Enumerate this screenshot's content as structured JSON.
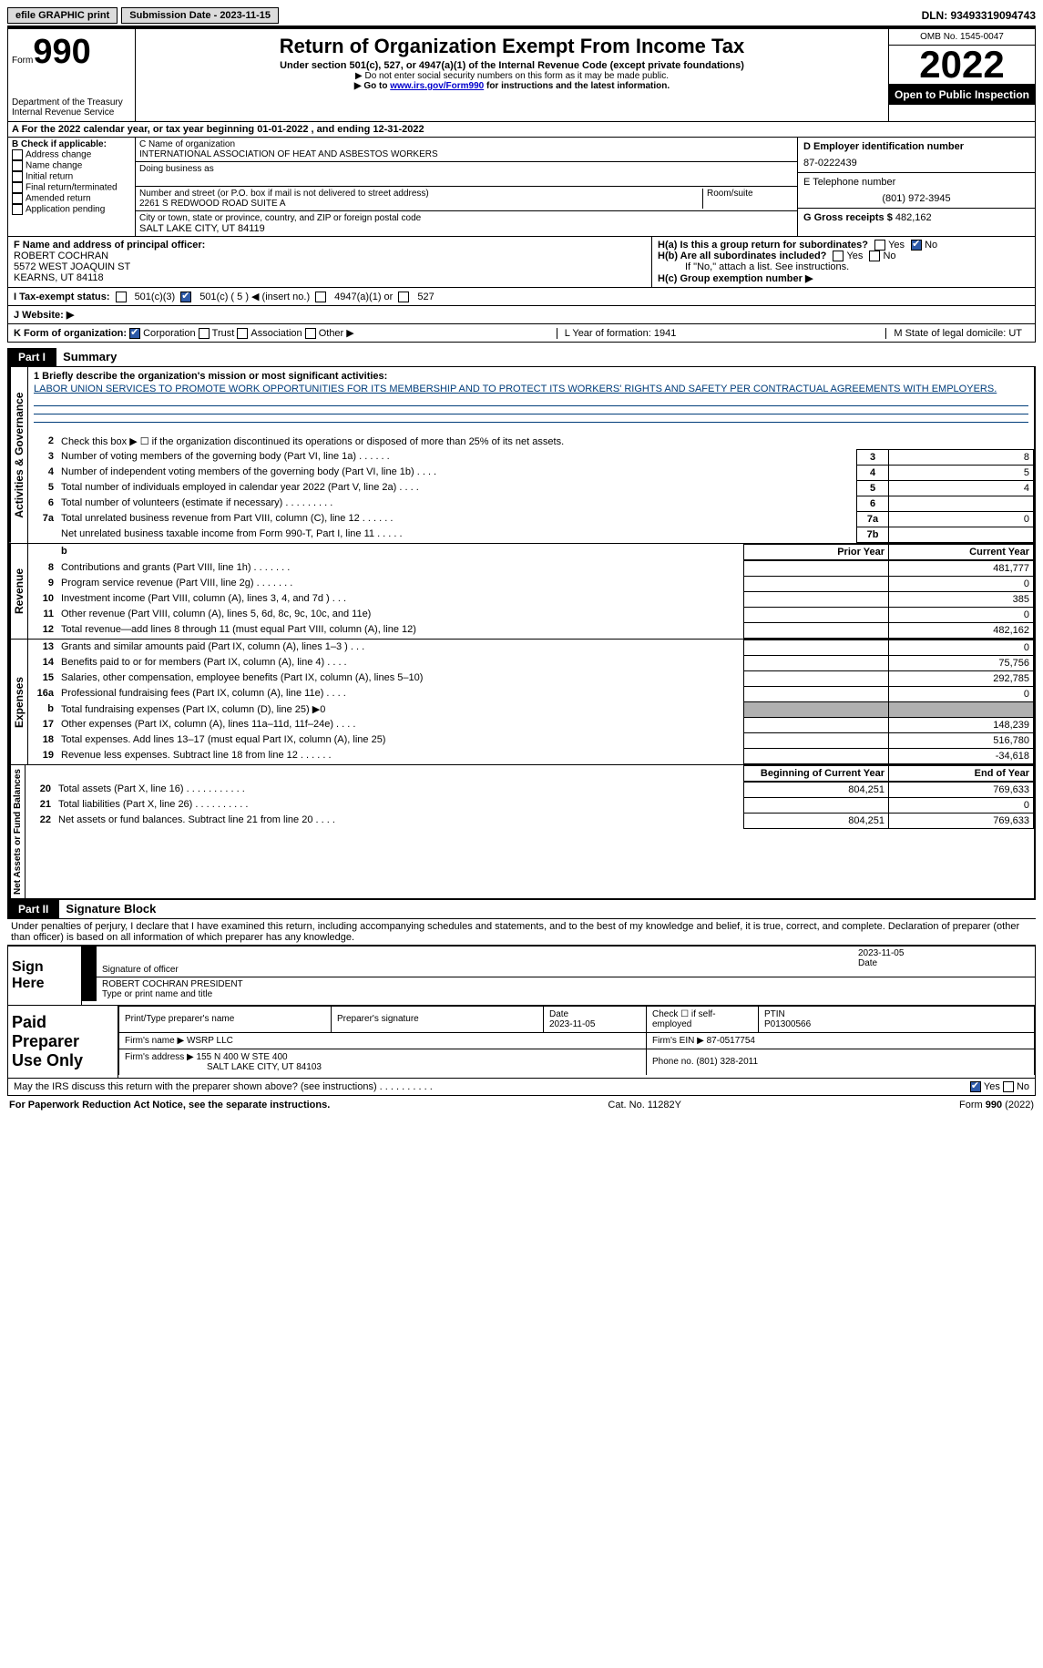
{
  "topbar": {
    "btn1": "efile GRAPHIC print",
    "sub_label": "Submission Date - 2023-11-15",
    "dln": "DLN: 93493319094743"
  },
  "header": {
    "form_word": "Form",
    "form_num": "990",
    "dept": "Department of the Treasury Internal Revenue Service",
    "title": "Return of Organization Exempt From Income Tax",
    "subtitle": "Under section 501(c), 527, or 4947(a)(1) of the Internal Revenue Code (except private foundations)",
    "note1": "▶ Do not enter social security numbers on this form as it may be made public.",
    "note2_pre": "▶ Go to ",
    "note2_link": "www.irs.gov/Form990",
    "note2_post": " for instructions and the latest information.",
    "omb": "OMB No. 1545-0047",
    "year": "2022",
    "open": "Open to Public Inspection"
  },
  "rowA": "A For the 2022 calendar year, or tax year beginning 01-01-2022    , and ending 12-31-2022",
  "colB": {
    "title": "B Check if applicable:",
    "opts": [
      "Address change",
      "Name change",
      "Initial return",
      "Final return/terminated",
      "Amended return",
      "Application pending"
    ]
  },
  "colC": {
    "name_label": "C Name of organization",
    "name": "INTERNATIONAL ASSOCIATION OF HEAT AND ASBESTOS WORKERS",
    "dba_label": "Doing business as",
    "addr_label": "Number and street (or P.O. box if mail is not delivered to street address)",
    "addr": "2261 S REDWOOD ROAD SUITE A",
    "room_label": "Room/suite",
    "city_label": "City or town, state or province, country, and ZIP or foreign postal code",
    "city": "SALT LAKE CITY, UT  84119"
  },
  "colD": {
    "ein_label": "D Employer identification number",
    "ein": "87-0222439",
    "tel_label": "E Telephone number",
    "tel": "(801) 972-3945",
    "gross_label": "G Gross receipts $",
    "gross": "482,162"
  },
  "sectionF": {
    "f_label": "F Name and address of principal officer:",
    "f_name": "ROBERT COCHRAN",
    "f_addr1": "5572 WEST JOAQUIN ST",
    "f_addr2": "KEARNS, UT  84118",
    "ha": "H(a)  Is this a group return for subordinates?",
    "hb": "H(b)  Are all subordinates included?",
    "hb_note": "If \"No,\" attach a list. See instructions.",
    "hc": "H(c)  Group exemption number ▶",
    "yes": "Yes",
    "no": "No"
  },
  "rowI": {
    "label": "I    Tax-exempt status:",
    "opt1": "501(c)(3)",
    "opt2": "501(c) ( 5 ) ◀ (insert no.)",
    "opt3": "4947(a)(1) or",
    "opt4": "527"
  },
  "rowJ": "J    Website: ▶",
  "rowK": {
    "label": "K Form of organization:",
    "opts": [
      "Corporation",
      "Trust",
      "Association",
      "Other ▶"
    ],
    "l": "L Year of formation: 1941",
    "m": "M State of legal domicile: UT"
  },
  "part1": {
    "header": "Part I",
    "title": "Summary",
    "side1": "Activities & Governance",
    "side2": "Revenue",
    "side3": "Expenses",
    "side4": "Net Assets or Fund Balances",
    "line1_label": "1   Briefly describe the organization's mission or most significant activities:",
    "mission": "LABOR UNION SERVICES TO PROMOTE WORK OPPORTUNITIES FOR ITS MEMBERSHIP AND TO PROTECT ITS WORKERS' RIGHTS AND SAFETY PER CONTRACTUAL AGREEMENTS WITH EMPLOYERS.",
    "line2": "Check this box ▶ ☐ if the organization discontinued its operations or disposed of more than 25% of its net assets.",
    "rows_a": [
      {
        "n": "3",
        "d": "Number of voting members of the governing body (Part VI, line 1a)   .    .    .    .    .    .",
        "b": "3",
        "v": "8"
      },
      {
        "n": "4",
        "d": "Number of independent voting members of the governing body (Part VI, line 1b)   .    .    .    .",
        "b": "4",
        "v": "5"
      },
      {
        "n": "5",
        "d": "Total number of individuals employed in calendar year 2022 (Part V, line 2a)   .    .    .    .",
        "b": "5",
        "v": "4"
      },
      {
        "n": "6",
        "d": "Total number of volunteers (estimate if necessary)    .    .    .    .    .    .    .    .    .",
        "b": "6",
        "v": ""
      },
      {
        "n": "7a",
        "d": "Total unrelated business revenue from Part VIII, column (C), line 12   .    .    .    .    .    .",
        "b": "7a",
        "v": "0"
      },
      {
        "n": "",
        "d": "Net unrelated business taxable income from Form 990-T, Part I, line 11   .    .    .    .    .",
        "b": "7b",
        "v": ""
      }
    ],
    "header_prior": "Prior Year",
    "header_current": "Current Year",
    "rows_b": [
      {
        "n": "8",
        "d": "Contributions and grants (Part VIII, line 1h)   .    .    .    .    .    .    .",
        "p": "",
        "c": "481,777"
      },
      {
        "n": "9",
        "d": "Program service revenue (Part VIII, line 2g)   .    .    .    .    .    .    .",
        "p": "",
        "c": "0"
      },
      {
        "n": "10",
        "d": "Investment income (Part VIII, column (A), lines 3, 4, and 7d )   .    .    .",
        "p": "",
        "c": "385"
      },
      {
        "n": "11",
        "d": "Other revenue (Part VIII, column (A), lines 5, 6d, 8c, 9c, 10c, and 11e)",
        "p": "",
        "c": "0"
      },
      {
        "n": "12",
        "d": "Total revenue—add lines 8 through 11 (must equal Part VIII, column (A), line 12)",
        "p": "",
        "c": "482,162"
      }
    ],
    "rows_c": [
      {
        "n": "13",
        "d": "Grants and similar amounts paid (Part IX, column (A), lines 1–3 )   .    .    .",
        "p": "",
        "c": "0"
      },
      {
        "n": "14",
        "d": "Benefits paid to or for members (Part IX, column (A), line 4)   .    .    .    .",
        "p": "",
        "c": "75,756"
      },
      {
        "n": "15",
        "d": "Salaries, other compensation, employee benefits (Part IX, column (A), lines 5–10)",
        "p": "",
        "c": "292,785"
      },
      {
        "n": "16a",
        "d": "Professional fundraising fees (Part IX, column (A), line 11e)   .    .    .    .",
        "p": "",
        "c": "0"
      },
      {
        "n": "b",
        "d": "Total fundraising expenses (Part IX, column (D), line 25) ▶0",
        "p": "gray",
        "c": "gray"
      },
      {
        "n": "17",
        "d": "Other expenses (Part IX, column (A), lines 11a–11d, 11f–24e)   .    .    .    .",
        "p": "",
        "c": "148,239"
      },
      {
        "n": "18",
        "d": "Total expenses. Add lines 13–17 (must equal Part IX, column (A), line 25)",
        "p": "",
        "c": "516,780"
      },
      {
        "n": "19",
        "d": "Revenue less expenses. Subtract line 18 from line 12   .    .    .    .    .    .",
        "p": "",
        "c": "-34,618"
      }
    ],
    "header_begin": "Beginning of Current Year",
    "header_end": "End of Year",
    "rows_d": [
      {
        "n": "20",
        "d": "Total assets (Part X, line 16)   .    .    .    .    .    .    .    .    .    .    .",
        "p": "804,251",
        "c": "769,633"
      },
      {
        "n": "21",
        "d": "Total liabilities (Part X, line 26)   .    .    .    .    .    .    .    .    .    .",
        "p": "",
        "c": "0"
      },
      {
        "n": "22",
        "d": "Net assets or fund balances. Subtract line 21 from line 20   .    .    .    .",
        "p": "804,251",
        "c": "769,633"
      }
    ]
  },
  "part2": {
    "header": "Part II",
    "title": "Signature Block",
    "penalty": "Under penalties of perjury, I declare that I have examined this return, including accompanying schedules and statements, and to the best of my knowledge and belief, it is true, correct, and complete. Declaration of preparer (other than officer) is based on all information of which preparer has any knowledge.",
    "sign_here": "Sign Here",
    "sig_officer": "Signature of officer",
    "sig_date": "2023-11-05",
    "date_label": "Date",
    "officer_name": "ROBERT COCHRAN  PRESIDENT",
    "type_label": "Type or print name and title",
    "paid": "Paid Preparer Use Only",
    "prep_name_label": "Print/Type preparer's name",
    "prep_sig_label": "Preparer's signature",
    "prep_date_label": "Date",
    "prep_date": "2023-11-05",
    "check_self": "Check ☐ if self-employed",
    "ptin_label": "PTIN",
    "ptin": "P01300566",
    "firm_name_label": "Firm's name     ▶",
    "firm_name": "WSRP LLC",
    "firm_ein_label": "Firm's EIN ▶",
    "firm_ein": "87-0517754",
    "firm_addr_label": "Firm's address ▶",
    "firm_addr1": "155 N 400 W STE 400",
    "firm_addr2": "SALT LAKE CITY, UT  84103",
    "phone_label": "Phone no.",
    "phone": "(801) 328-2011",
    "may_irs": "May the IRS discuss this return with the preparer shown above? (see instructions)   .    .    .    .    .    .    .    .    .    ."
  },
  "footer": {
    "left": "For Paperwork Reduction Act Notice, see the separate instructions.",
    "mid": "Cat. No. 11282Y",
    "right": "Form 990 (2022)"
  }
}
